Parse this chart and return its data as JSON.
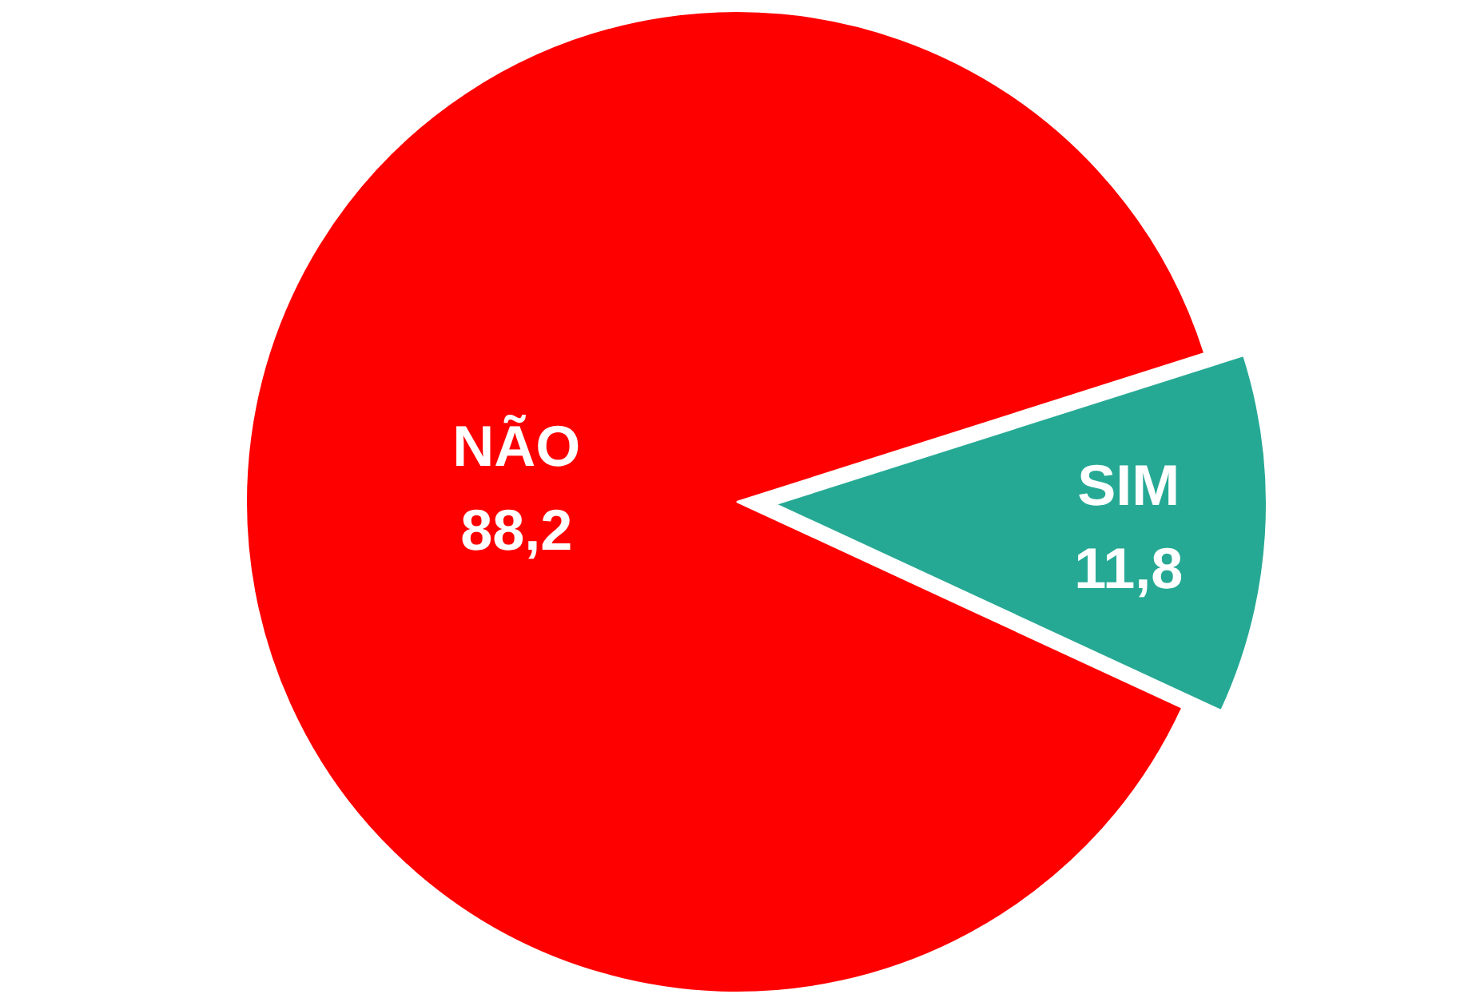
{
  "chart_data": {
    "type": "pie",
    "categories": [
      "SIM",
      "NÃO"
    ],
    "values": [
      11.8,
      88.2
    ],
    "colors": [
      "#26a994",
      "#ff0000"
    ],
    "value_labels": [
      "11,8",
      "88,2"
    ]
  }
}
